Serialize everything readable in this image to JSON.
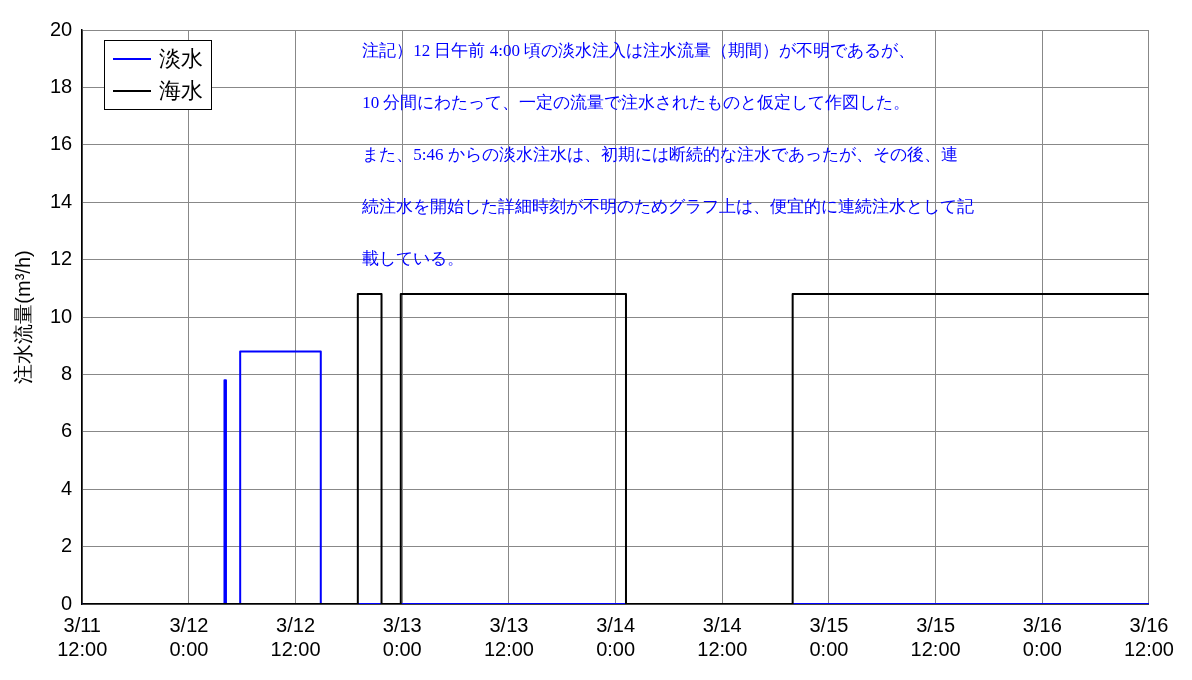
{
  "chart_data": {
    "type": "line",
    "ylabel": "注水流量(m³/h)",
    "annotations": [
      "注記）12 日午前 4:00 頃の淡水注入は注水流量（期間）が不明であるが、",
      "10 分間にわたって、一定の流量で注水されたものと仮定して作図した。",
      "また、5:46 からの淡水注水は、初期には断続的な注水であったが、その後、連",
      "続注水を開始した詳細時刻が不明のためグラフ上は、便宜的に連続注水として記",
      "載している。"
    ],
    "series": [
      {
        "name": "淡水",
        "color": "#0000ff",
        "x": [
          "--03-11T12:00",
          "--03-12T04:00",
          "--03-12T04:00",
          "--03-12T04:10",
          "--03-12T04:10",
          "--03-12T05:46",
          "--03-12T05:46",
          "--03-12T14:50",
          "--03-12T14:50",
          "--03-16T12:00"
        ],
        "values": [
          0,
          0,
          7.8,
          7.8,
          0,
          0,
          8.8,
          8.8,
          0,
          0
        ]
      },
      {
        "name": "海水",
        "color": "#000000",
        "x": [
          "--03-11T12:00",
          "--03-12T19:00",
          "--03-12T19:00",
          "--03-12T21:40",
          "--03-12T21:40",
          "--03-12T23:50",
          "--03-12T23:50",
          "--03-14T01:10",
          "--03-14T01:10",
          "--03-14T19:55",
          "--03-14T19:55",
          "--03-16T12:00"
        ],
        "values": [
          0,
          0,
          10.8,
          10.8,
          0,
          0,
          10.8,
          10.8,
          0,
          0,
          10.8,
          10.8
        ]
      }
    ],
    "xlim": [
      "--03-11T12:00",
      "--03-16T12:00"
    ],
    "xticks": [
      {
        "value": "--03-11T12:00",
        "label": "3/11\n12:00"
      },
      {
        "value": "--03-12T00:00",
        "label": "3/12\n0:00"
      },
      {
        "value": "--03-12T12:00",
        "label": "3/12\n12:00"
      },
      {
        "value": "--03-13T00:00",
        "label": "3/13\n0:00"
      },
      {
        "value": "--03-13T12:00",
        "label": "3/13\n12:00"
      },
      {
        "value": "--03-14T00:00",
        "label": "3/14\n0:00"
      },
      {
        "value": "--03-14T12:00",
        "label": "3/14\n12:00"
      },
      {
        "value": "--03-15T00:00",
        "label": "3/15\n0:00"
      },
      {
        "value": "--03-15T12:00",
        "label": "3/15\n12:00"
      },
      {
        "value": "--03-16T00:00",
        "label": "3/16\n0:00"
      },
      {
        "value": "--03-16T12:00",
        "label": "3/16\n12:00"
      }
    ],
    "ylim": [
      0,
      20
    ],
    "yticks": [
      0,
      2,
      4,
      6,
      8,
      10,
      12,
      14,
      16,
      18,
      20
    ],
    "grid": true,
    "legend": "top left",
    "marker": "none",
    "line_style": "solid"
  }
}
